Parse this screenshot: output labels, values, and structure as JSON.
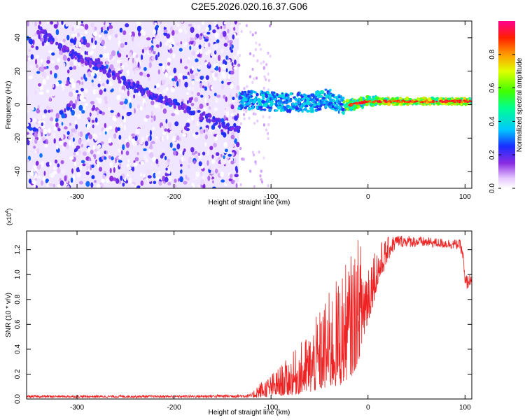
{
  "title": "C2E5.2026.020.16.37.G06",
  "chart_data": [
    {
      "type": "heatmap",
      "title": "C2E5.2026.020.16.37.G06",
      "xlabel": "Height of straight line (km)",
      "ylabel": "Frequency (Hz)",
      "xlim": [
        -352,
        107
      ],
      "ylim": [
        -50,
        50
      ],
      "xticks": [
        -300,
        -200,
        -100,
        0,
        100
      ],
      "xtick_labels": [
        "-300",
        "-200",
        "-100",
        "0",
        "100"
      ],
      "yticks": [
        -40,
        -20,
        0,
        20,
        40
      ],
      "ytick_labels": [
        "-40",
        "-20",
        "0",
        "20",
        "40"
      ],
      "colorbar": {
        "label": "Normalized spectral amplitude",
        "range": [
          0,
          1
        ],
        "ticks": [
          0.0,
          0.2,
          0.4,
          0.6,
          0.8
        ],
        "tick_labels": [
          "0.0",
          "0.2",
          "0.4",
          "0.6",
          "0.8"
        ]
      },
      "regions": [
        {
          "name": "noise",
          "x_range": [
            -352,
            -133
          ],
          "freq_range": [
            -50,
            50
          ],
          "amplitude": 0.1
        },
        {
          "name": "signal-band",
          "x_range": [
            -133,
            107
          ],
          "freq_center": 2,
          "amplitude": 0.9
        }
      ],
      "doppler_trace": [
        {
          "x": -340,
          "freq": 45
        },
        {
          "x": -310,
          "freq": 32
        },
        {
          "x": -270,
          "freq": 20
        },
        {
          "x": -240,
          "freq": 10
        },
        {
          "x": -210,
          "freq": 3
        },
        {
          "x": -180,
          "freq": -4
        },
        {
          "x": -150,
          "freq": -12
        },
        {
          "x": -133,
          "freq": -15
        }
      ],
      "signal_centerline": [
        {
          "x": -133,
          "freq": 3
        },
        {
          "x": -100,
          "freq": 2
        },
        {
          "x": -60,
          "freq": 1
        },
        {
          "x": -40,
          "freq": 4
        },
        {
          "x": -25,
          "freq": -1
        },
        {
          "x": 0,
          "freq": 2
        },
        {
          "x": 50,
          "freq": 2
        },
        {
          "x": 107,
          "freq": 2
        }
      ]
    },
    {
      "type": "line",
      "xlabel": "Height of straight line (km)",
      "ylabel": "SNR (10 * v/v)",
      "y_scale_label": "(x10",
      "y_scale_exponent": "4",
      "y_scale_suffix": ")",
      "xlim": [
        -352,
        107
      ],
      "ylim": [
        0,
        1.35
      ],
      "xticks": [
        -300,
        -200,
        -100,
        0,
        100
      ],
      "xtick_labels": [
        "-300",
        "-200",
        "-100",
        "0",
        "100"
      ],
      "yticks": [
        0.0,
        0.2,
        0.4,
        0.6,
        0.8,
        1.0,
        1.2
      ],
      "ytick_labels": [
        "0.0",
        "0.2",
        "0.4",
        "0.6",
        "0.8",
        "1.0",
        "1.2"
      ],
      "color": "#ee2222",
      "envelope": [
        {
          "x": -352,
          "low": 0.01,
          "high": 0.03
        },
        {
          "x": -200,
          "low": 0.01,
          "high": 0.03
        },
        {
          "x": -120,
          "low": 0.01,
          "high": 0.04
        },
        {
          "x": -115,
          "low": 0.01,
          "high": 0.12
        },
        {
          "x": -100,
          "low": 0.02,
          "high": 0.2
        },
        {
          "x": -80,
          "low": 0.03,
          "high": 0.35
        },
        {
          "x": -60,
          "low": 0.05,
          "high": 0.55
        },
        {
          "x": -45,
          "low": 0.08,
          "high": 0.8
        },
        {
          "x": -30,
          "low": 0.1,
          "high": 1.0
        },
        {
          "x": -15,
          "low": 0.2,
          "high": 1.2
        },
        {
          "x": -10,
          "low": 0.3,
          "high": 1.3
        },
        {
          "x": 0,
          "low": 0.6,
          "high": 1.2
        },
        {
          "x": 10,
          "low": 0.9,
          "high": 1.25
        },
        {
          "x": 20,
          "low": 1.1,
          "high": 1.3
        },
        {
          "x": 30,
          "low": 1.22,
          "high": 1.32
        },
        {
          "x": 60,
          "low": 1.22,
          "high": 1.3
        },
        {
          "x": 95,
          "low": 1.2,
          "high": 1.28
        },
        {
          "x": 98,
          "low": 1.1,
          "high": 1.2
        },
        {
          "x": 100,
          "low": 0.85,
          "high": 1.0
        },
        {
          "x": 107,
          "low": 0.93,
          "high": 1.0
        }
      ]
    }
  ]
}
